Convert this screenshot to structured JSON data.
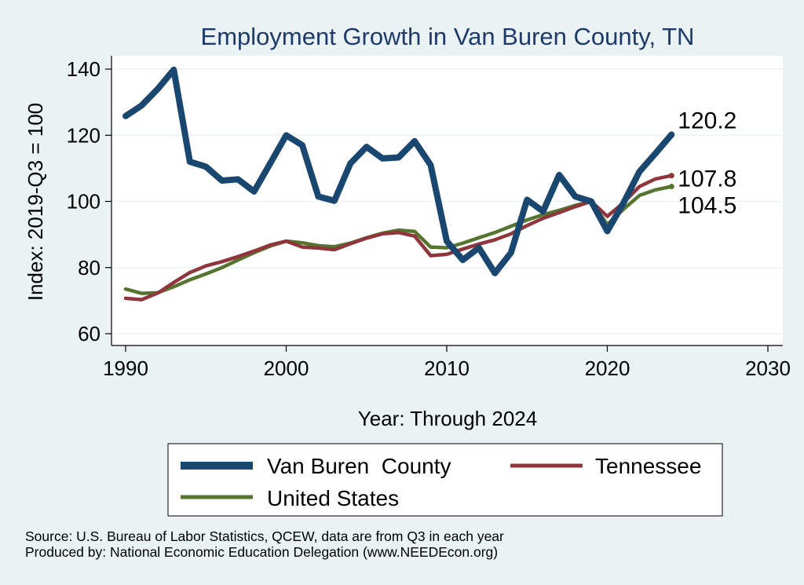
{
  "chart_data": {
    "type": "line",
    "title": "Employment Growth in Van Buren County, TN",
    "xlabel": "Year: Through 2024",
    "ylabel": "Index: 2019-Q3 = 100",
    "xlim": [
      1990,
      2030
    ],
    "ylim": [
      60,
      140
    ],
    "x_ticks": [
      1990,
      2000,
      2010,
      2020,
      2030
    ],
    "y_ticks": [
      60,
      80,
      100,
      120,
      140
    ],
    "grid": true,
    "legend_position": "bottom",
    "x": [
      1990,
      1991,
      1992,
      1993,
      1994,
      1995,
      1996,
      1997,
      1998,
      1999,
      2000,
      2001,
      2002,
      2003,
      2004,
      2005,
      2006,
      2007,
      2008,
      2009,
      2010,
      2011,
      2012,
      2013,
      2014,
      2015,
      2016,
      2017,
      2018,
      2019,
      2020,
      2021,
      2022,
      2023,
      2024
    ],
    "series": [
      {
        "name": "Van Buren  County",
        "color": "#1a476f",
        "values": [
          125.8,
          129.0,
          134.0,
          139.8,
          112.0,
          110.5,
          106.3,
          106.7,
          103.0,
          111.5,
          120.0,
          117.0,
          101.5,
          100.2,
          111.5,
          116.5,
          113.0,
          113.3,
          118.2,
          111.0,
          88.0,
          82.3,
          86.0,
          78.3,
          84.5,
          100.5,
          97.0,
          108.0,
          101.5,
          100.0,
          91.0,
          99.5,
          109.0,
          114.5,
          120.2
        ],
        "end_label": "120.2"
      },
      {
        "name": "Tennessee",
        "color": "#90353b",
        "values": [
          70.7,
          70.3,
          72.3,
          75.5,
          78.5,
          80.5,
          81.8,
          83.3,
          85.0,
          86.8,
          88.0,
          86.2,
          85.9,
          85.4,
          87.2,
          88.9,
          90.2,
          90.6,
          89.5,
          83.6,
          84.0,
          85.6,
          87.1,
          88.4,
          90.2,
          92.7,
          94.9,
          96.6,
          98.4,
          100.0,
          95.5,
          99.6,
          104.5,
          106.8,
          107.8
        ],
        "end_label": "107.8"
      },
      {
        "name": "United States",
        "color": "#55752f",
        "values": [
          73.5,
          72.2,
          72.4,
          74.2,
          76.3,
          78.1,
          80.0,
          82.3,
          84.5,
          86.5,
          88.0,
          87.5,
          86.6,
          86.3,
          87.4,
          89.0,
          90.4,
          91.3,
          90.9,
          86.2,
          86.0,
          87.4,
          89.0,
          90.6,
          92.5,
          94.4,
          96.0,
          97.3,
          98.8,
          100.0,
          93.0,
          97.6,
          101.8,
          103.5,
          104.5
        ],
        "end_label": "104.5"
      }
    ]
  },
  "source_lines": [
    "Source: U.S. Bureau of Labor Statistics, QCEW, data are from Q3 in each year",
    "Produced by: National Economic Education Delegation (www.NEEDEcon.org)"
  ]
}
